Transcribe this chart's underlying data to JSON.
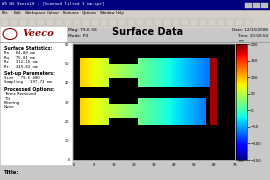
{
  "title": "Surface Data",
  "veeco_text": "Veeco",
  "mag_text": "Mag: 79.6 3X",
  "mode_text": "Mode: PII",
  "date_text": "Date: 12/15/2008",
  "time_text": "Time: 10:50:54",
  "stats_title": "Surface Statistics:",
  "stat_lines": [
    "Ra   64.00 nm",
    "Rq   75.01 nm",
    "Rz   312.15 nm",
    "Rt   349.83 nm"
  ],
  "setup_title": "Set-up Parameters:",
  "setup_lines": [
    "Size   79.6 400",
    "Sampling   197.73 nm"
  ],
  "processed_title": "Processed Options:",
  "processed_lines": [
    "Terms Removed",
    "Tilt",
    "Filtering",
    "None"
  ],
  "title_label": "Title:",
  "bg_color": "#c8c8c8",
  "plot_bg": "#000000",
  "colorbar_ticks": [
    200,
    150,
    100,
    50,
    0,
    -50,
    -100,
    -150
  ],
  "window_title": "WS WS Veeco10 - [Scanned Tilted 3 nm.spr]"
}
